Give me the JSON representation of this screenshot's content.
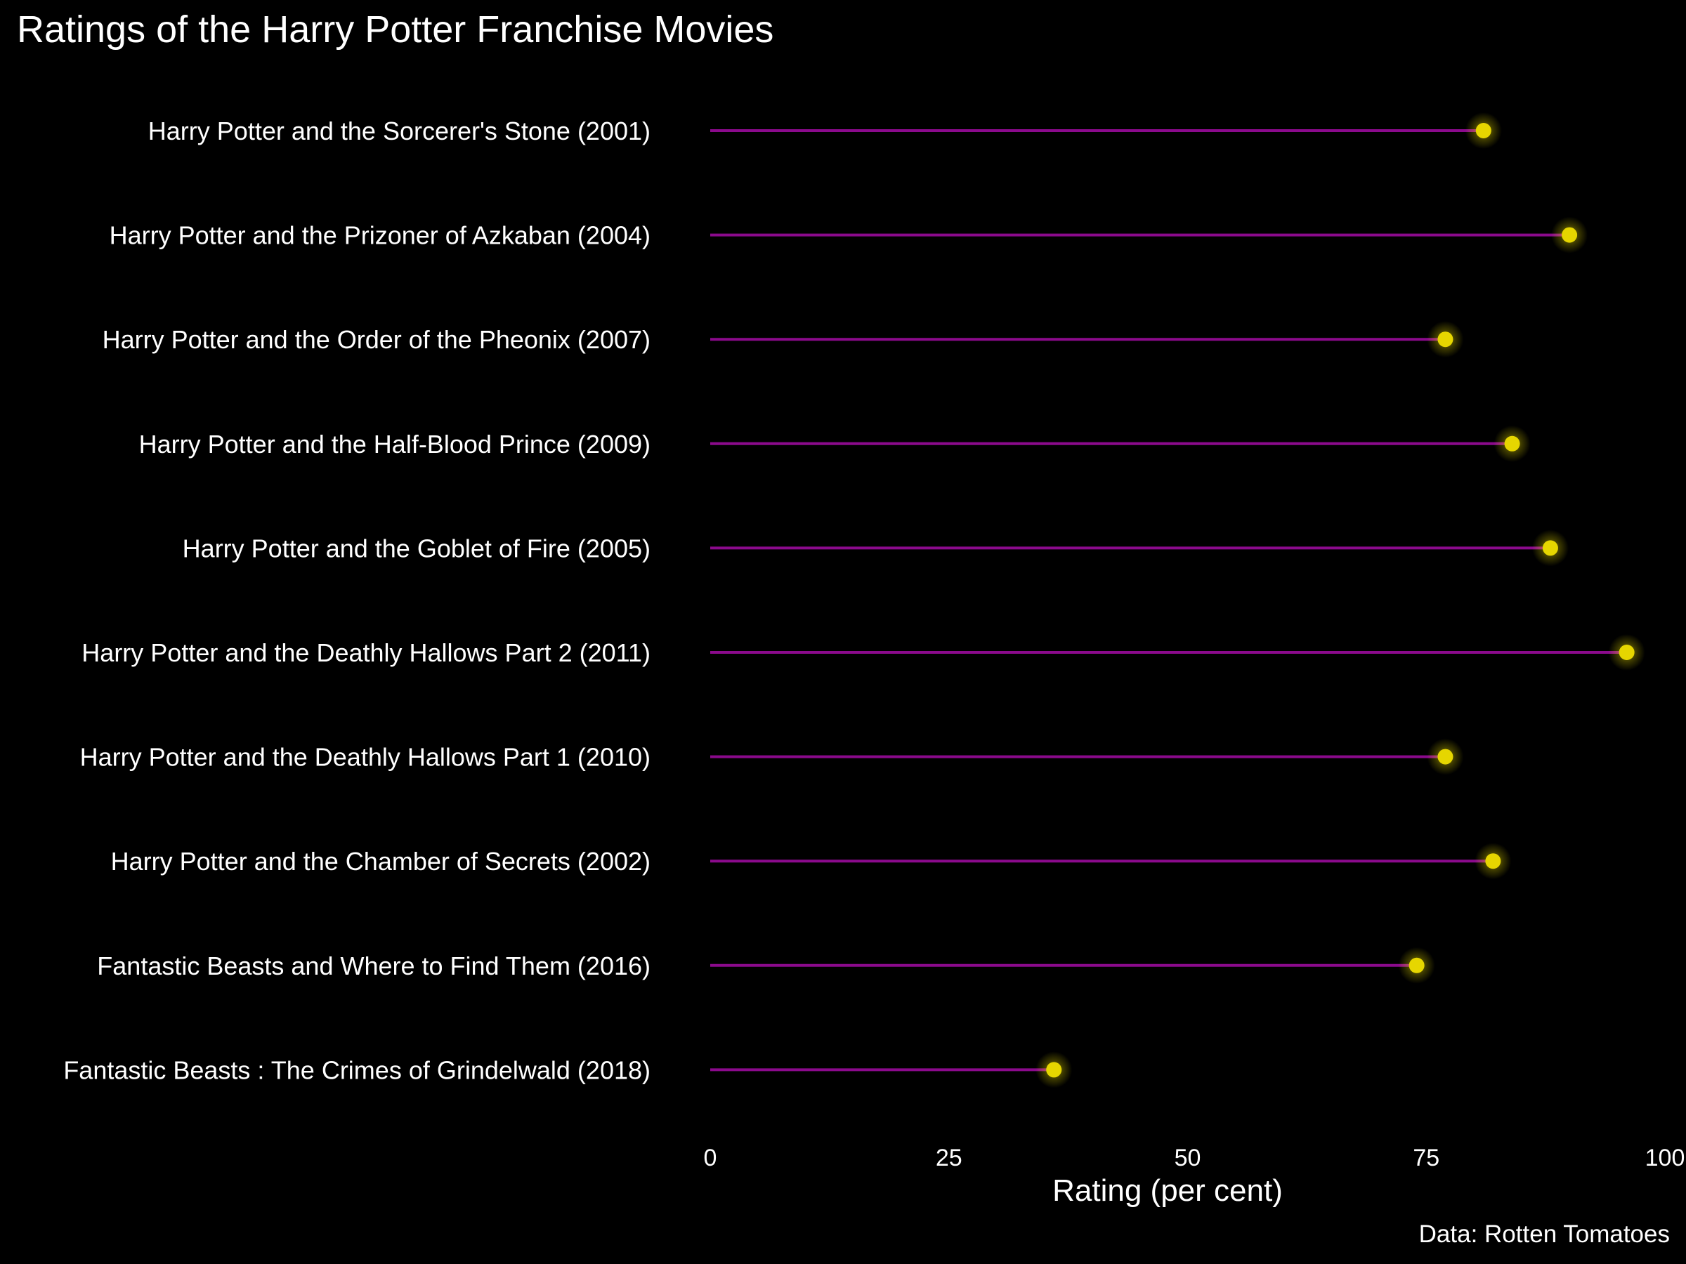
{
  "chart_data": {
    "type": "lollipop",
    "title": "Ratings of the Harry Potter Franchise Movies",
    "xlabel": "Rating (per cent)",
    "ylabel": "",
    "caption": "Data: Rotten Tomatoes",
    "xlim": [
      0,
      100
    ],
    "x_ticks": [
      0,
      25,
      50,
      75,
      100
    ],
    "grid": false,
    "categories": [
      "Harry Potter and the Sorcerer's Stone (2001)",
      "Harry Potter and the Prizoner of Azkaban (2004)",
      "Harry Potter and the Order of the Pheonix (2007)",
      "Harry Potter and the Half-Blood Prince (2009)",
      "Harry Potter and the Goblet of Fire (2005)",
      "Harry Potter and the Deathly Hallows Part 2 (2011)",
      "Harry Potter and the Deathly Hallows Part 1 (2010)",
      "Harry Potter and the Chamber of Secrets (2002)",
      "Fantastic Beasts and Where to Find Them (2016)",
      "Fantastic Beasts : The Crimes of Grindelwald (2018)"
    ],
    "values": [
      81,
      90,
      77,
      84,
      88,
      96,
      77,
      82,
      74,
      36
    ],
    "colors": {
      "background": "#000000",
      "stem": "#8b0a8c",
      "point": "#e6d600",
      "glow": "#fff200",
      "text": "#ffffff"
    }
  }
}
